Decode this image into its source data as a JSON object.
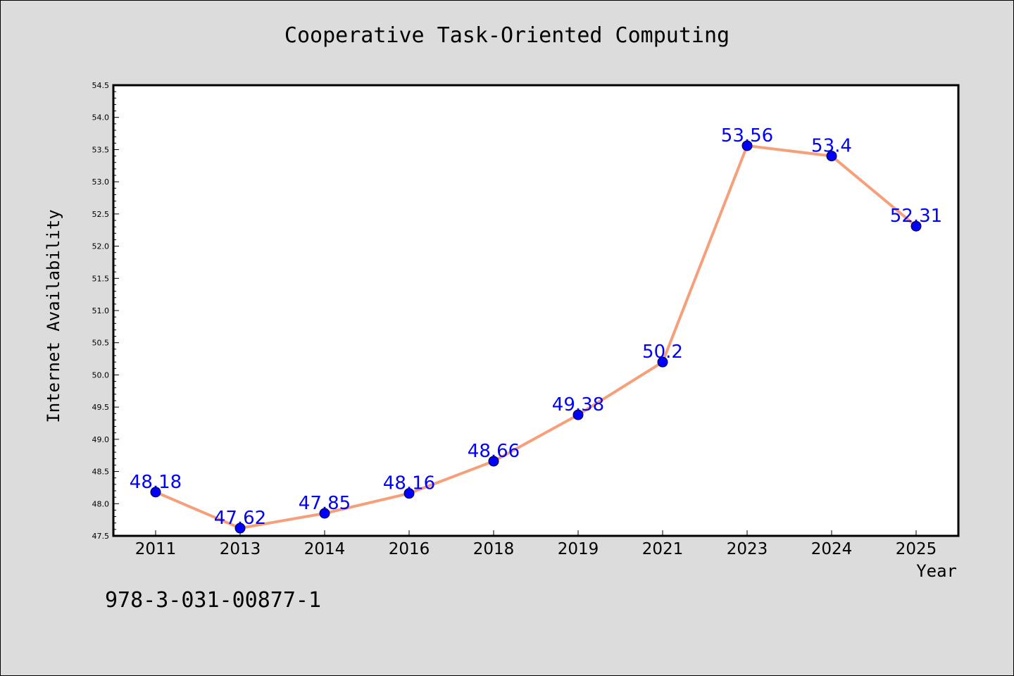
{
  "header": {
    "isbn": "978-3-031-00877-1"
  },
  "colors": {
    "line": "#f5a07a",
    "marker": "#0000ff",
    "label": "#0000ff",
    "background": "#dcdcdc",
    "plot_background": "#ffffff"
  },
  "chart_data": {
    "type": "line",
    "title": "Cooperative Task-Oriented Computing",
    "xlabel": "Year",
    "ylabel": "Internet Availability",
    "categories": [
      "2011",
      "2013",
      "2014",
      "2016",
      "2018",
      "2019",
      "2021",
      "2023",
      "2024",
      "2025"
    ],
    "series": [
      {
        "values": [
          48.18,
          47.62,
          47.85,
          48.16,
          48.66,
          49.38,
          50.2,
          53.56,
          53.4,
          52.31
        ]
      }
    ],
    "ylim": [
      47.5,
      54.5
    ],
    "yticks": [
      "47.5",
      "48.0",
      "48.5",
      "49.0",
      "49.5",
      "50.0",
      "50.5",
      "51.0",
      "51.5",
      "52.0",
      "52.5",
      "53.0",
      "53.5",
      "54.0",
      "54.5"
    ],
    "grid": false,
    "legend": "none",
    "data_labels": true
  }
}
